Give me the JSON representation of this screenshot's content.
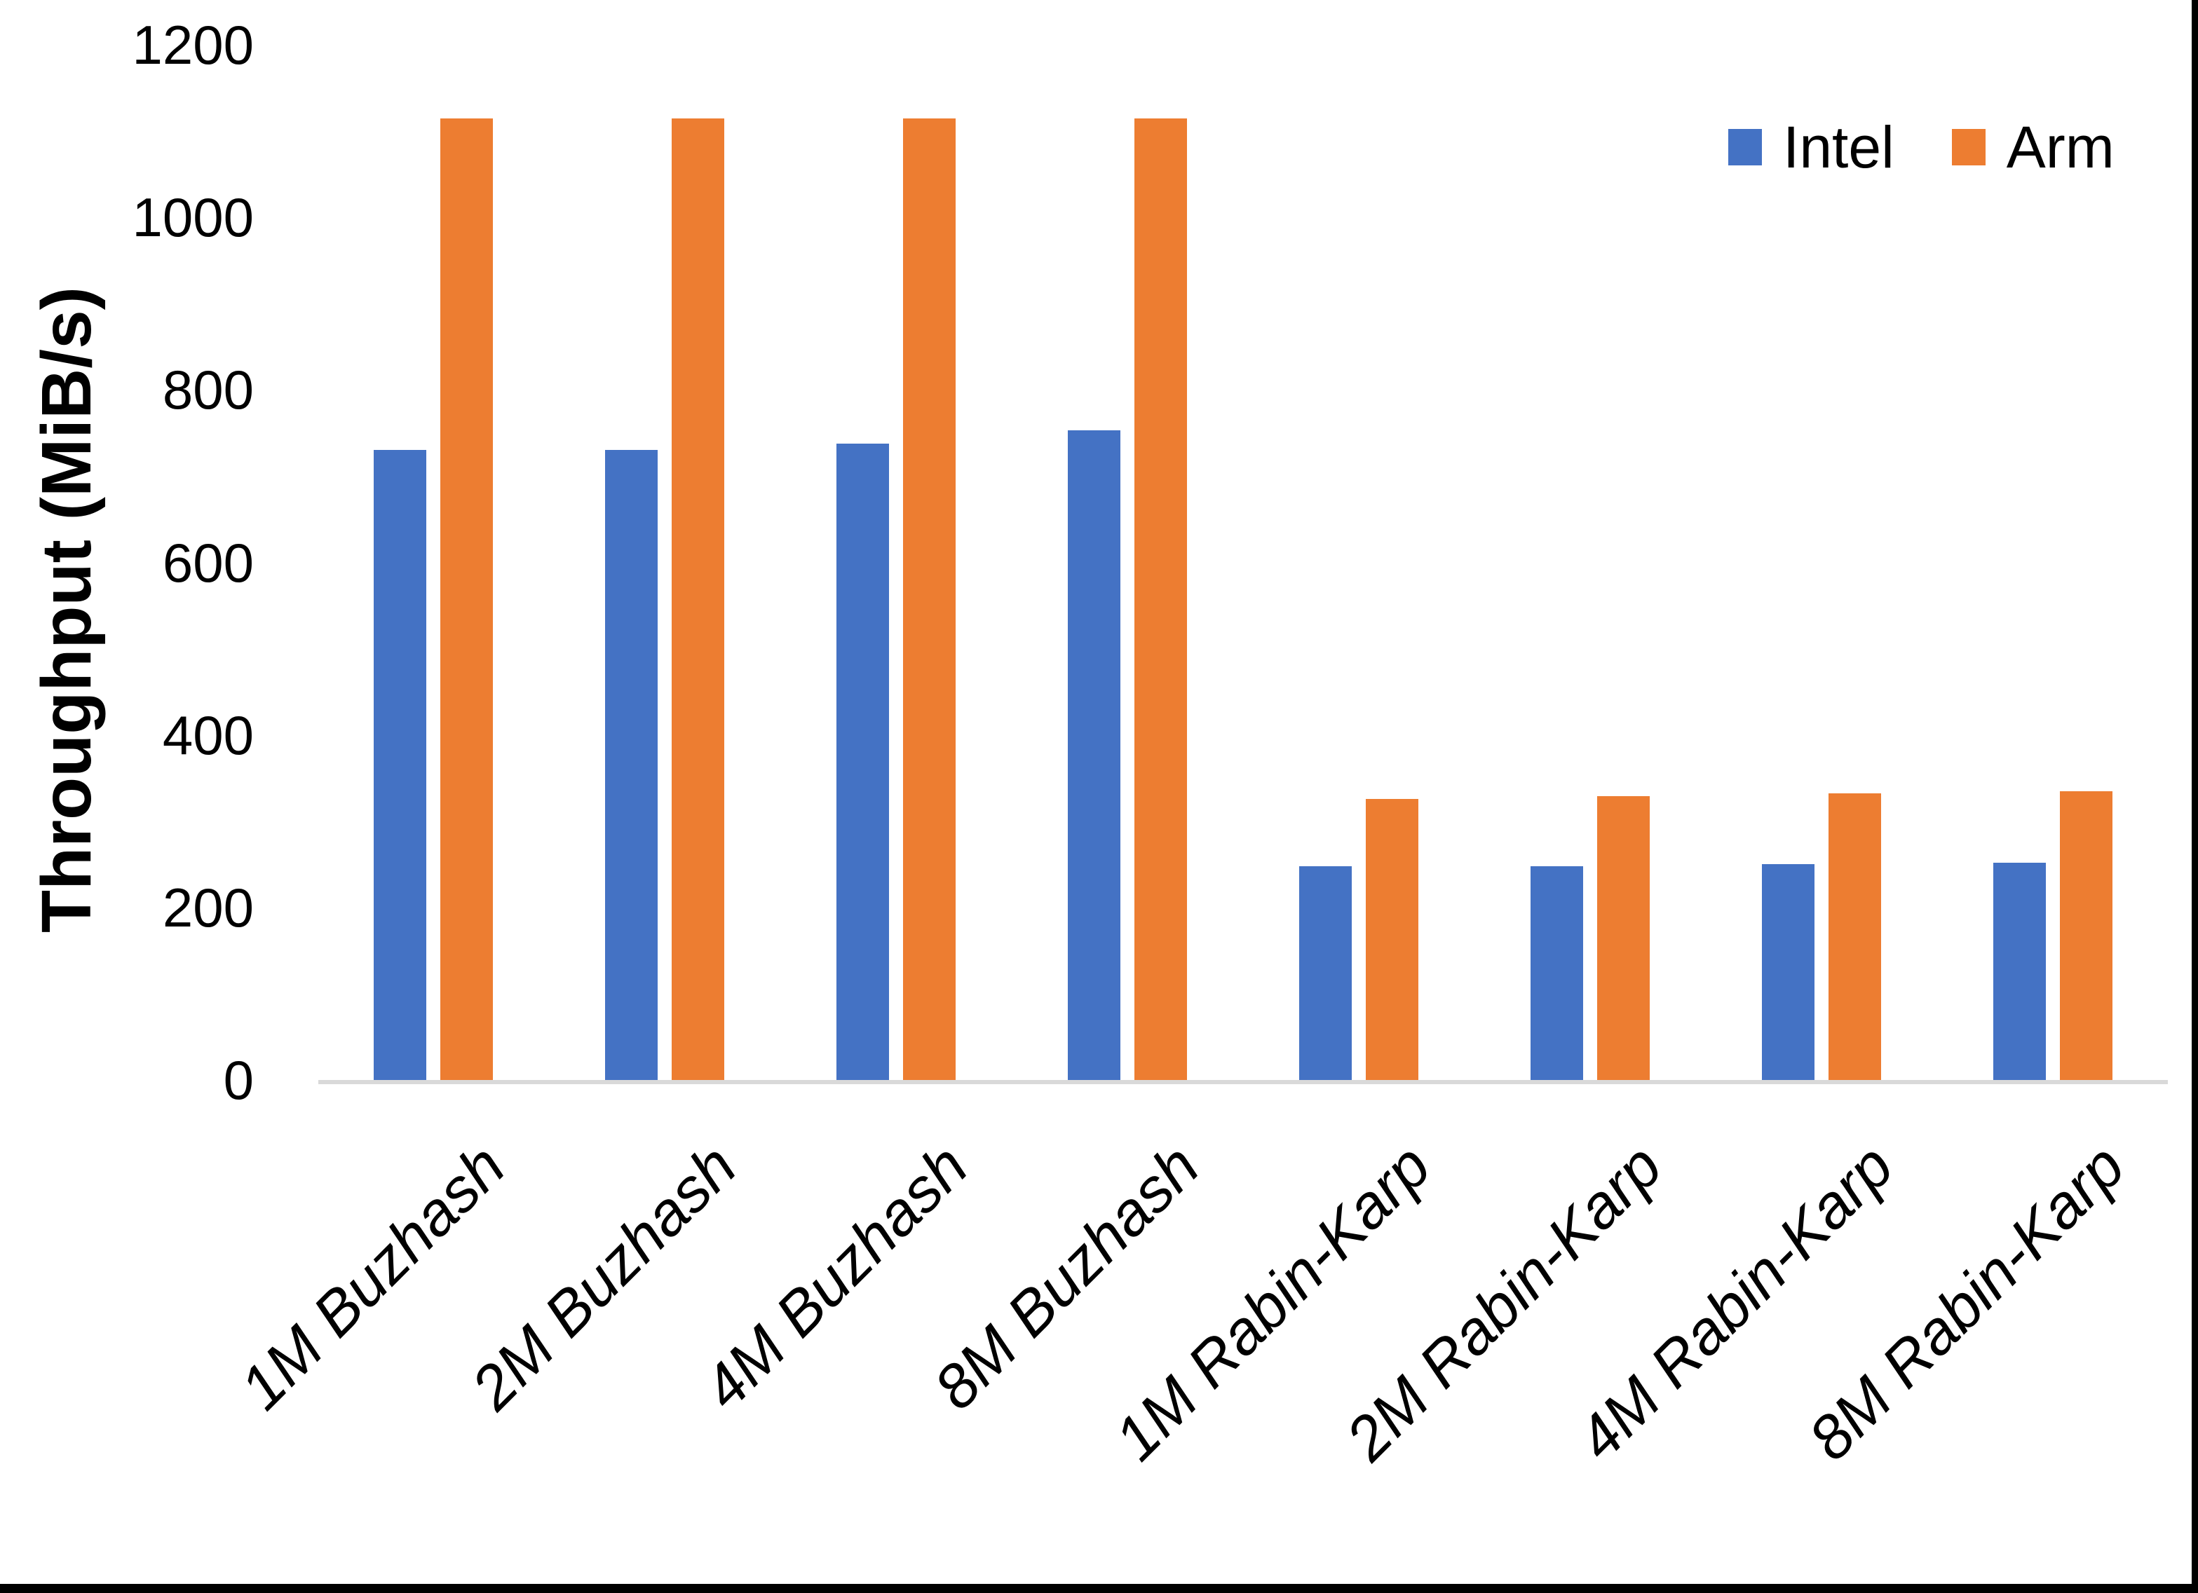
{
  "figure": {
    "background": "#ffffff",
    "crop_edge_color": "#000000"
  },
  "chart_data": {
    "type": "bar",
    "title": "",
    "xlabel": "",
    "ylabel": "Throughput (MiB/s)",
    "categories": [
      "1M Buzhash",
      "2M Buzhash",
      "4M Buzhash",
      "8M Buzhash",
      "1M Rabin-Karp",
      "2M Rabin-Karp",
      "4M Rabin-Karp",
      "8M Rabin-Karp"
    ],
    "series": [
      {
        "name": "Intel",
        "color": "#4472C4",
        "values": [
          730,
          730,
          738,
          753,
          248,
          248,
          250,
          252
        ]
      },
      {
        "name": "Arm",
        "color": "#ED7D31",
        "values": [
          1115,
          1115,
          1115,
          1115,
          326,
          329,
          332,
          335
        ]
      }
    ],
    "ylim": [
      0,
      1200
    ],
    "yticks": [
      0,
      200,
      400,
      600,
      800,
      1000,
      1200
    ],
    "grid": false,
    "legend_position": "top-right",
    "axis_line_color": "#D9D9D9",
    "tick_label_color": "#000000",
    "category_label_style": "italic, rotated 45deg"
  }
}
